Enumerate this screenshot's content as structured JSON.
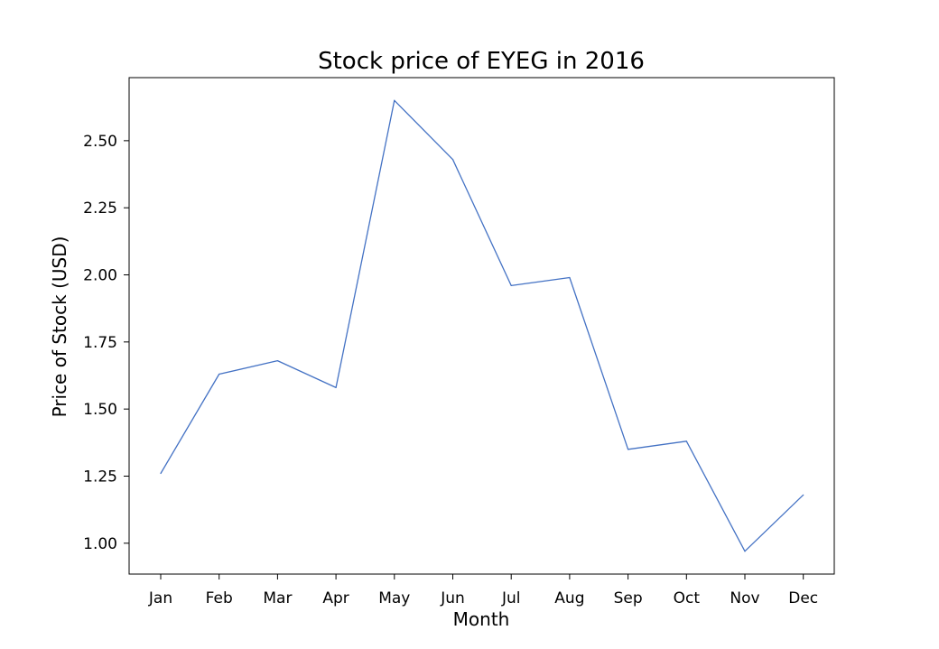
{
  "chart_data": {
    "type": "line",
    "title": "Stock price of EYEG in 2016",
    "xlabel": "Month",
    "ylabel": "Price of Stock (USD)",
    "categories": [
      "Jan",
      "Feb",
      "Mar",
      "Apr",
      "May",
      "Jun",
      "Jul",
      "Aug",
      "Sep",
      "Oct",
      "Nov",
      "Dec"
    ],
    "series": [
      {
        "values": [
          1.26,
          1.63,
          1.68,
          1.58,
          2.65,
          2.43,
          1.96,
          1.99,
          1.35,
          1.38,
          0.97,
          1.18
        ]
      }
    ],
    "yticks": [
      1.0,
      1.25,
      1.5,
      1.75,
      2.0,
      2.25,
      2.5
    ],
    "ytick_labels": [
      "1.00",
      "1.25",
      "1.50",
      "1.75",
      "2.00",
      "2.25",
      "2.50"
    ],
    "ylim": [
      0.885,
      2.735
    ],
    "grid": false,
    "line_color": "#4472c4"
  }
}
